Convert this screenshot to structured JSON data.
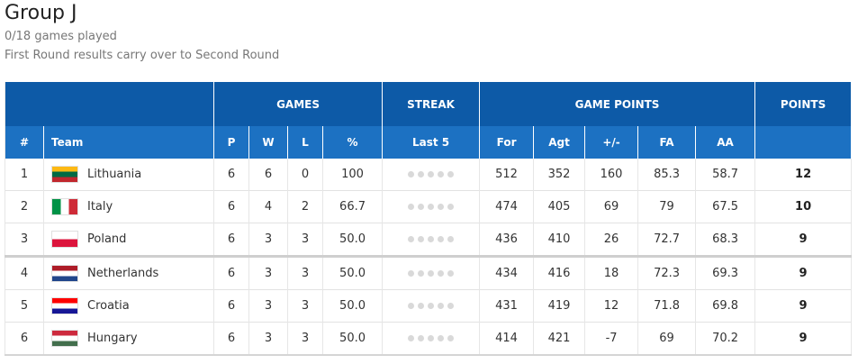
{
  "page": {
    "title": "Group J",
    "games_played": "0/18 games played",
    "note": "First Round results carry over to Second Round"
  },
  "header": {
    "groups": {
      "games": "GAMES",
      "streak": "STREAK",
      "game_points": "GAME POINTS",
      "points": "POINTS"
    },
    "columns": {
      "rank": "#",
      "team": "Team",
      "p": "P",
      "w": "W",
      "l": "L",
      "pct": "%",
      "last5": "Last 5",
      "for": "For",
      "agt": "Agt",
      "diff": "+/-",
      "fa": "FA",
      "aa": "AA"
    }
  },
  "colors": {
    "header_dark": "#0d5aa7",
    "header_light": "#1c71c2",
    "streak_dot": "#d9d9d9"
  },
  "rows": [
    {
      "rank": "1",
      "team": "Lithuania",
      "flag": [
        "#fdb913",
        "#006a44",
        "#c1272d"
      ],
      "flag_dir": "h",
      "p": "6",
      "w": "6",
      "l": "0",
      "pct": "100",
      "for": "512",
      "agt": "352",
      "diff": "160",
      "fa": "85.3",
      "aa": "58.7",
      "pts": "12"
    },
    {
      "rank": "2",
      "team": "Italy",
      "flag": [
        "#009246",
        "#ffffff",
        "#ce2b37"
      ],
      "flag_dir": "v",
      "p": "6",
      "w": "4",
      "l": "2",
      "pct": "66.7",
      "for": "474",
      "agt": "405",
      "diff": "69",
      "fa": "79",
      "aa": "67.5",
      "pts": "10"
    },
    {
      "rank": "3",
      "team": "Poland",
      "flag": [
        "#ffffff",
        "#dc143c"
      ],
      "flag_dir": "h",
      "p": "6",
      "w": "3",
      "l": "3",
      "pct": "50.0",
      "for": "436",
      "agt": "410",
      "diff": "26",
      "fa": "72.7",
      "aa": "68.3",
      "pts": "9"
    },
    {
      "rank": "4",
      "team": "Netherlands",
      "flag": [
        "#ae1c28",
        "#ffffff",
        "#21468b"
      ],
      "flag_dir": "h",
      "p": "6",
      "w": "3",
      "l": "3",
      "pct": "50.0",
      "for": "434",
      "agt": "416",
      "diff": "18",
      "fa": "72.3",
      "aa": "69.3",
      "pts": "9"
    },
    {
      "rank": "5",
      "team": "Croatia",
      "flag": [
        "#ff0000",
        "#ffffff",
        "#171796"
      ],
      "flag_dir": "h",
      "p": "6",
      "w": "3",
      "l": "3",
      "pct": "50.0",
      "for": "431",
      "agt": "419",
      "diff": "12",
      "fa": "71.8",
      "aa": "69.8",
      "pts": "9"
    },
    {
      "rank": "6",
      "team": "Hungary",
      "flag": [
        "#cd2a3e",
        "#ffffff",
        "#436f4d"
      ],
      "flag_dir": "h",
      "p": "6",
      "w": "3",
      "l": "3",
      "pct": "50.0",
      "for": "414",
      "agt": "421",
      "diff": "-7",
      "fa": "69",
      "aa": "70.2",
      "pts": "9"
    }
  ]
}
